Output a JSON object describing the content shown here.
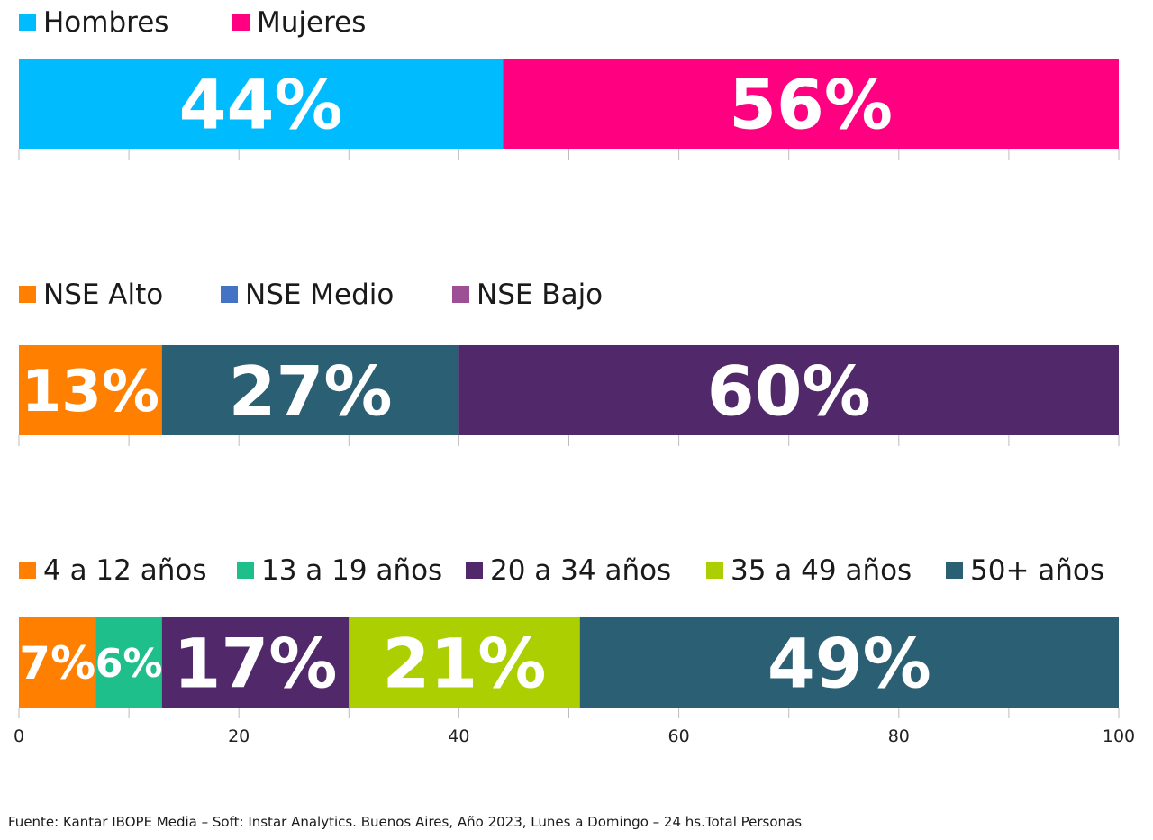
{
  "chart_data": [
    {
      "type": "bar",
      "orientation": "horizontal",
      "stacked": true,
      "categories": [
        ""
      ],
      "series": [
        {
          "name": "Hombres",
          "values": [
            44
          ],
          "label": "44%",
          "color": "#00bcff",
          "label_color": "#ffffff"
        },
        {
          "name": "Mujeres",
          "values": [
            56
          ],
          "label": "56%",
          "color": "#ff0080",
          "label_color": "#ffffff"
        }
      ],
      "legend_markers": [
        "#00bcff",
        "#ff0080"
      ],
      "legend_position": "top-left",
      "xlim": [
        0,
        100
      ]
    },
    {
      "type": "bar",
      "orientation": "horizontal",
      "stacked": true,
      "categories": [
        ""
      ],
      "series": [
        {
          "name": "NSE Alto",
          "values": [
            13
          ],
          "label": "13%",
          "color": "#ff7f00",
          "label_color": "#ffffff"
        },
        {
          "name": "NSE Medio",
          "values": [
            27
          ],
          "label": "27%",
          "color": "#2b5f73",
          "label_color": "#ffffff"
        },
        {
          "name": "NSE Bajo",
          "values": [
            60
          ],
          "label": "60%",
          "color": "#51286a",
          "label_color": "#ffffff"
        }
      ],
      "legend_markers": [
        "#ff7f00",
        "#4472c4",
        "#9e5096"
      ],
      "legend_position": "top-left",
      "xlim": [
        0,
        100
      ]
    },
    {
      "type": "bar",
      "orientation": "horizontal",
      "stacked": true,
      "categories": [
        ""
      ],
      "series": [
        {
          "name": "4 a 12 años",
          "values": [
            7
          ],
          "label": "7%",
          "color": "#ff7f00",
          "label_color": "#ffffff"
        },
        {
          "name": "13 a 19 años",
          "values": [
            6
          ],
          "label": "6%",
          "color": "#1ebf8a",
          "label_color": "#ffffff"
        },
        {
          "name": "20 a 34 años",
          "values": [
            17
          ],
          "label": "17%",
          "color": "#51286a",
          "label_color": "#ffffff"
        },
        {
          "name": "35 a 49 años",
          "values": [
            21
          ],
          "label": "21%",
          "color": "#abcf00",
          "label_color": "#000000"
        },
        {
          "name": "50+ años",
          "values": [
            49
          ],
          "label": "49%",
          "color": "#2b5f73",
          "label_color": "#ffffff"
        }
      ],
      "legend_markers": [
        "#ff7f00",
        "#1ebf8a",
        "#51286a",
        "#abcf00",
        "#2b5f73"
      ],
      "legend_position": "top-left",
      "xlim": [
        0,
        100
      ],
      "xticks": [
        "0",
        "20",
        "40",
        "60",
        "80",
        "100"
      ]
    }
  ],
  "source": "Fuente: Kantar IBOPE Media – Soft: Instar Analytics. Buenos Aires, Año 2023, Lunes a Domingo – 24 hs.Total Personas"
}
